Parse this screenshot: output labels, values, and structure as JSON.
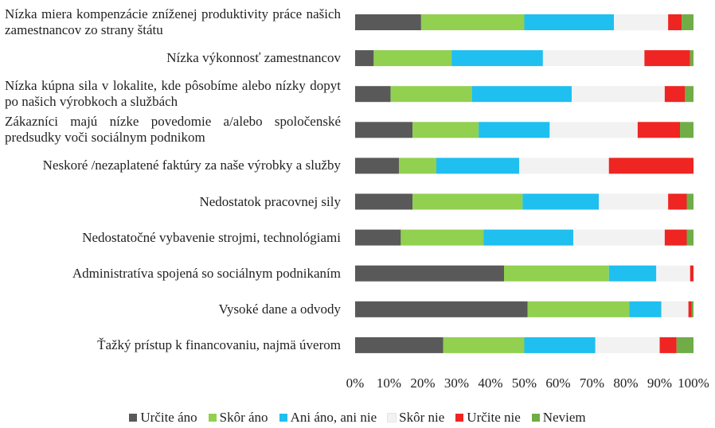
{
  "chart_data": {
    "type": "stacked_barh",
    "categories": [
      "Nízka miera kompenzácie zníženej produktivity práce našich zamestnancov zo strany štátu",
      "Nízka výkonnosť zamestnancov",
      "Nízka kúpna sila v lokalite, kde pôsobíme alebo nízky dopyt po našich výrobkoch a službách",
      "Zákazníci majú nízke povedomie a/alebo spoločenské predsudky voči sociálnym podnikom",
      "Neskoré /nezaplatené faktúry za naše výrobky a služby",
      "Nedostatok pracovnej sily",
      "Nedostatočné vybavenie strojmi, technológiami",
      "Administratíva spojená so sociálnym podnikaním",
      "Vysoké dane a odvody",
      "Ťažký prístup k financovaniu, najmä úverom"
    ],
    "series": [
      {
        "name": "Určite áno",
        "color": "#595959",
        "values": [
          19.5,
          5.5,
          10.5,
          17,
          13,
          17,
          13.5,
          44,
          51,
          26
        ]
      },
      {
        "name": "Skôr áno",
        "color": "#92d050",
        "values": [
          30.5,
          23,
          24,
          19.5,
          11,
          32.5,
          24.5,
          31,
          30,
          24
        ]
      },
      {
        "name": "Ani áno, ani nie",
        "color": "#1fbff0",
        "values": [
          26.5,
          27,
          29.5,
          21,
          24.5,
          22.5,
          26.5,
          14,
          9.5,
          21
        ]
      },
      {
        "name": "Skôr nie",
        "color": "#f2f2f2",
        "values": [
          16,
          30,
          27.5,
          26,
          26.5,
          20.5,
          27,
          10,
          8,
          19
        ]
      },
      {
        "name": "Určite nie",
        "color": "#ee2522",
        "values": [
          4,
          13.5,
          6,
          12.5,
          25,
          5.5,
          6.5,
          1,
          1,
          5
        ]
      },
      {
        "name": "Neviem",
        "color": "#70ad47",
        "values": [
          3.5,
          1,
          2.5,
          4,
          0,
          2,
          2,
          0,
          0.5,
          5
        ]
      }
    ],
    "xlim": [
      0,
      100
    ],
    "xticks": [
      {
        "value": 0,
        "label": "0%"
      },
      {
        "value": 10,
        "label": "10%"
      },
      {
        "value": 20,
        "label": "20%"
      },
      {
        "value": 30,
        "label": "30%"
      },
      {
        "value": 40,
        "label": "40%"
      },
      {
        "value": 50,
        "label": "50%"
      },
      {
        "value": 60,
        "label": "60%"
      },
      {
        "value": 70,
        "label": "70%"
      },
      {
        "value": 80,
        "label": "80%"
      },
      {
        "value": 90,
        "label": "90%"
      },
      {
        "value": 100,
        "label": "100%"
      }
    ],
    "legend": "bottom"
  }
}
